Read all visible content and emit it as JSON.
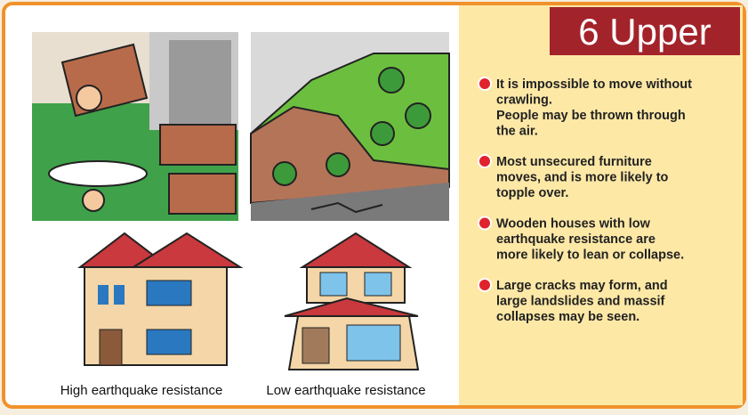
{
  "badge": {
    "title": "6 Upper"
  },
  "bullets": [
    {
      "lines": [
        "It is impossible to move without",
        "crawling.",
        "People may be thrown through",
        "the air."
      ]
    },
    {
      "lines": [
        "Most unsecured furniture",
        "moves, and is more likely to",
        "topple over."
      ]
    },
    {
      "lines": [
        "Wooden houses with low",
        "earthquake resistance are",
        "more likely to lean or collapse."
      ]
    },
    {
      "lines": [
        "Large cracks may form, and",
        "large landslides and massif",
        "collapses may be seen."
      ]
    }
  ],
  "captions": [
    "High earthquake resistance",
    "Low earthquake resistance"
  ]
}
